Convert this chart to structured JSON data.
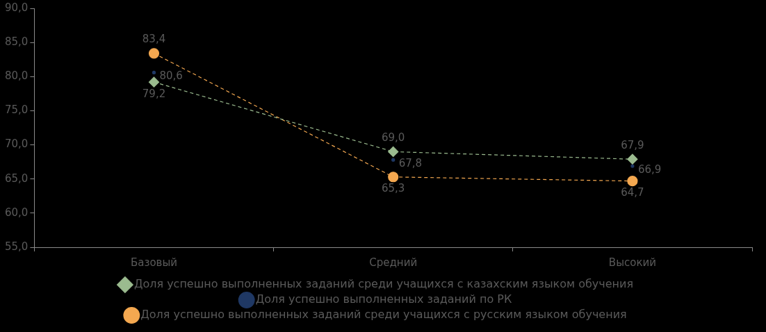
{
  "chart_data": {
    "type": "line",
    "categories": [
      "Базовый",
      "Средний",
      "Высокий"
    ],
    "series": [
      {
        "name": "Доля успешно выполненных заданий среди учащихся с казахским языком обучения",
        "color": "#9bbb8f",
        "values": [
          79.2,
          69.0,
          67.9
        ],
        "value_labels": [
          "79,2",
          "69,0",
          "67,9"
        ],
        "marker": "diamond",
        "line_style": "dashed"
      },
      {
        "name": "Доля успешно выполненных заданий по РК",
        "type": "scatter",
        "color": "#1f3864",
        "values": [
          80.6,
          67.8,
          66.9
        ],
        "value_labels": [
          "80,6",
          "67,8",
          "66,9"
        ],
        "marker": "circle"
      },
      {
        "name": "Доля успешно выполненных заданий среди учащихся с русским языком обучения",
        "color": "#f4a850",
        "values": [
          83.4,
          65.3,
          64.7
        ],
        "value_labels": [
          "83,4",
          "65,3",
          "64,7"
        ],
        "marker": "circle",
        "line_style": "dashed"
      }
    ],
    "ylim": [
      55,
      90
    ],
    "yticks": [
      {
        "value": 55,
        "label": "55,0"
      },
      {
        "value": 60,
        "label": "60,0"
      },
      {
        "value": 65,
        "label": "65,0"
      },
      {
        "value": 70,
        "label": "70,0"
      },
      {
        "value": 75,
        "label": "75,0"
      },
      {
        "value": 80,
        "label": "80,0"
      },
      {
        "value": 85,
        "label": "85,0"
      },
      {
        "value": 90,
        "label": "90,0"
      }
    ],
    "grid": false,
    "legend": "bottom"
  }
}
